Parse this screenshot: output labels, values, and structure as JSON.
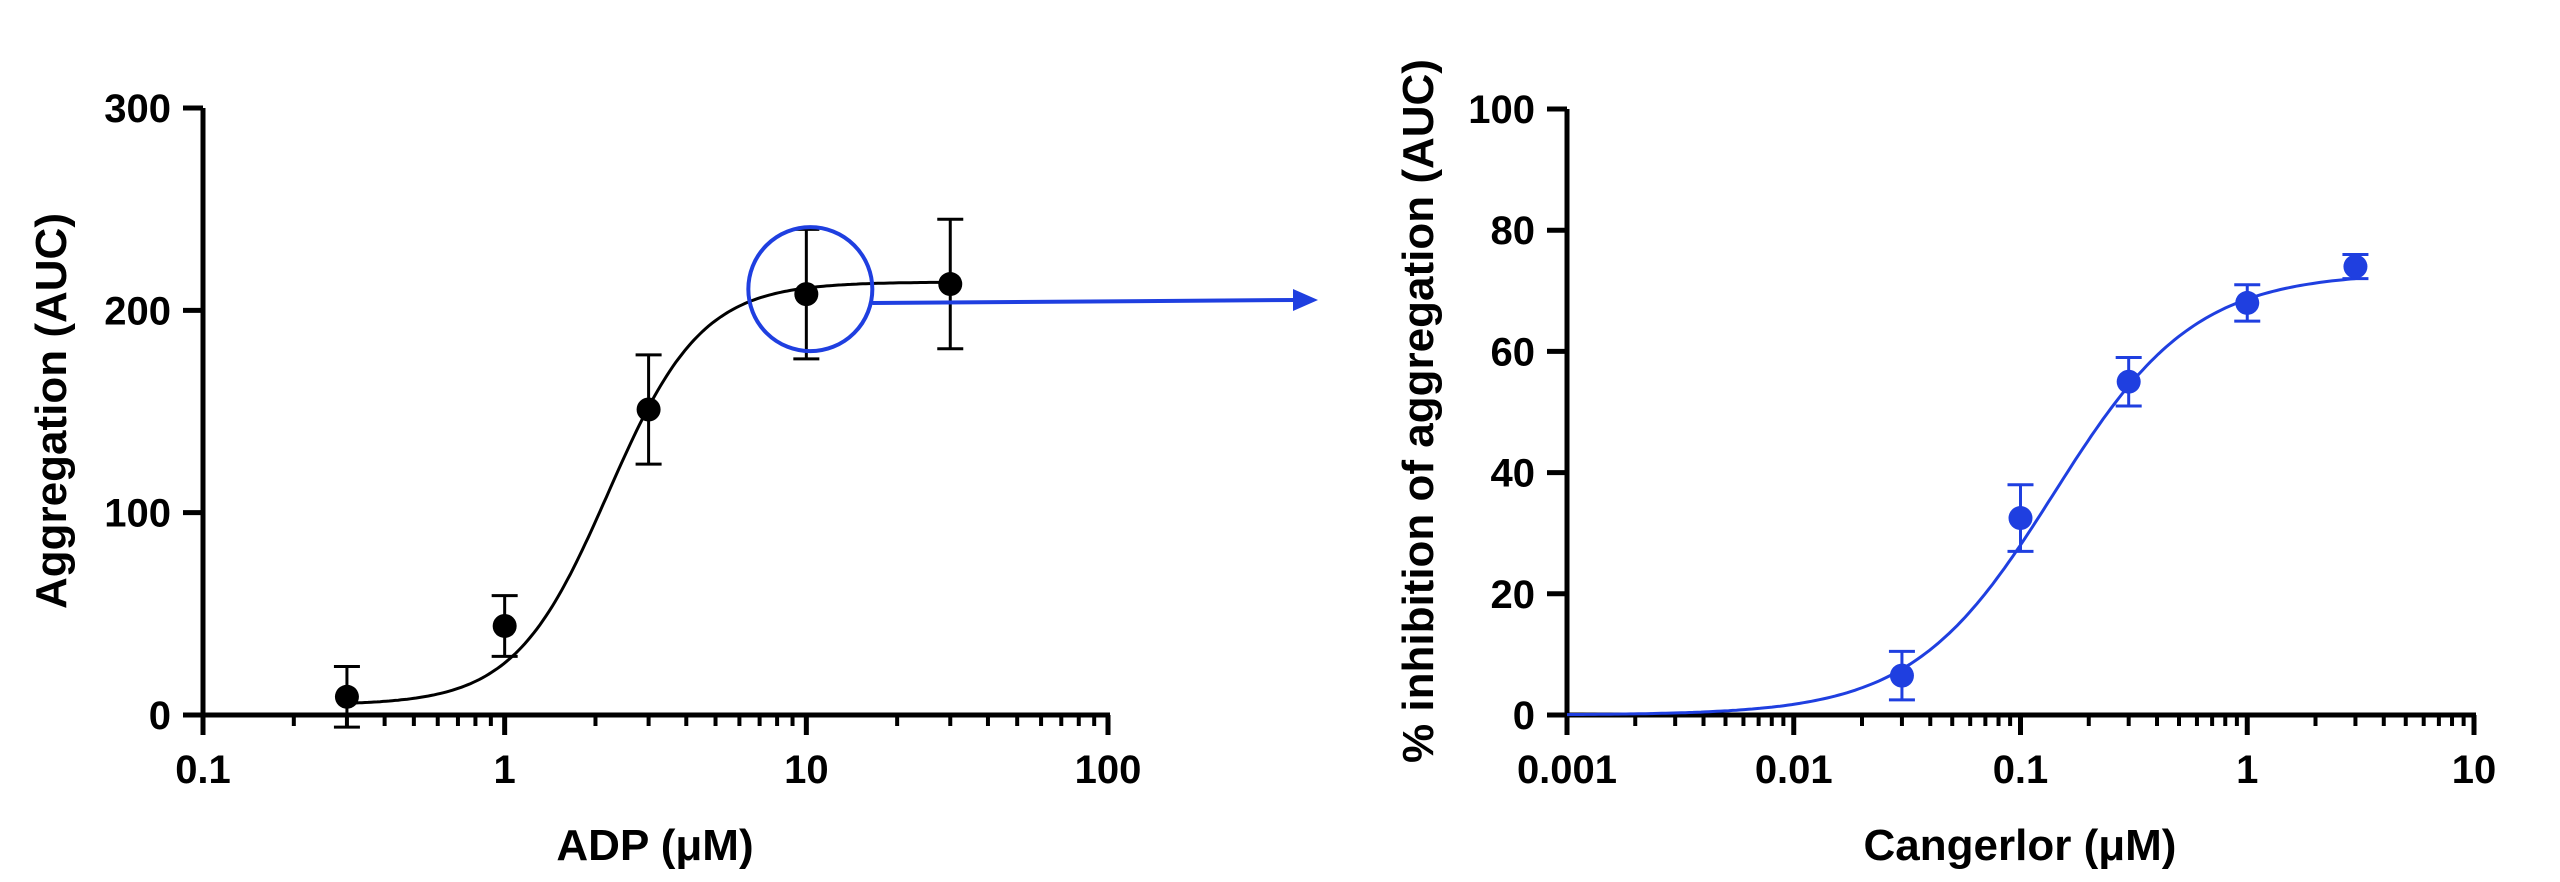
{
  "colors": {
    "left": "#000000",
    "right": "#1f3fe0",
    "annotation": "#1f3fe0"
  },
  "chart_data": [
    {
      "type": "scatter",
      "title": "",
      "xlabel": "ADP (μM)",
      "ylabel": "Aggregation (AUC)",
      "xscale": "log",
      "xlim": [
        0.1,
        100
      ],
      "ylim": [
        0,
        300
      ],
      "xticks": [
        "0.1",
        "1",
        "10",
        "100"
      ],
      "yticks": [
        "0",
        "100",
        "200",
        "300"
      ],
      "grid": false,
      "legend": "none",
      "color": "#000000",
      "series": [
        {
          "x": [
            0.3,
            1,
            3,
            10,
            30
          ],
          "y": [
            9,
            44,
            151,
            208,
            213
          ],
          "err": [
            15,
            15,
            27,
            32,
            32
          ]
        }
      ],
      "fit": {
        "bottom": 5,
        "top": 214,
        "ec50": 2.2,
        "hill": 2.8,
        "xmin": 0.3,
        "xmax": 30
      },
      "annotation": {
        "type": "circle-arrow",
        "x": 10,
        "y": 208
      }
    },
    {
      "type": "scatter",
      "title": "",
      "xlabel": "Cangerlor (μM)",
      "ylabel": "% inhibition of aggregation (AUC)",
      "xscale": "log",
      "xlim": [
        0.001,
        10
      ],
      "ylim": [
        0,
        100
      ],
      "xticks": [
        "0.001",
        "0.01",
        "0.1",
        "1",
        "10"
      ],
      "yticks": [
        "0",
        "20",
        "40",
        "60",
        "80",
        "100"
      ],
      "grid": false,
      "legend": "none",
      "color": "#1f3fe0",
      "series": [
        {
          "x": [
            0.03,
            0.1,
            0.3,
            1,
            3
          ],
          "y": [
            6.5,
            32.5,
            55,
            68,
            74
          ],
          "err": [
            4,
            5.5,
            4,
            3,
            2
          ]
        }
      ],
      "fit": {
        "bottom": 0,
        "top": 73,
        "ec50": 0.14,
        "hill": 1.4,
        "xmin": 0.001,
        "xmax": 3
      }
    }
  ]
}
